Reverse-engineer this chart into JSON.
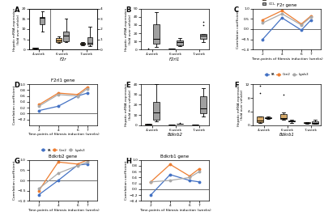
{
  "panel_C": {
    "gene": "F2r gene",
    "xlabel": "Time-points of fibrosis induction (weeks)",
    "ylabel": "Correlation coefficient",
    "x": [
      2,
      4,
      6,
      7
    ],
    "FA": [
      -0.5,
      0.55,
      -0.05,
      0.45
    ],
    "Ccn2": [
      0.45,
      0.9,
      0.25,
      0.65
    ],
    "Lgals3": [
      0.3,
      0.75,
      0.2,
      0.6
    ],
    "ylim": [
      -1,
      1
    ],
    "yticks": [
      -1,
      -0.5,
      0,
      0.5,
      1
    ]
  },
  "panel_D": {
    "gene": "F2rl1 gene",
    "xlabel": "Time-points of fibrosis induction (weeks)",
    "ylabel": "Correlation coefficient",
    "x": [
      2,
      4,
      6,
      7
    ],
    "FA": [
      0.1,
      0.25,
      0.6,
      0.7
    ],
    "Ccn2": [
      0.3,
      0.7,
      0.65,
      0.9
    ],
    "Lgals3": [
      0.25,
      0.65,
      0.6,
      0.85
    ],
    "ylim": [
      -0.4,
      1.0
    ],
    "yticks": [
      -0.2,
      0,
      0.2,
      0.4,
      0.6,
      0.8,
      1.0
    ]
  },
  "panel_G": {
    "gene": "Bdkrb2 gene",
    "xlabel": "Time-points of fibrosis induction (weeks)",
    "ylabel": "Correlation coefficient",
    "x": [
      2,
      4,
      6,
      7
    ],
    "FA": [
      -0.7,
      0.0,
      0.75,
      0.8
    ],
    "Ccn2": [
      -0.5,
      0.9,
      0.8,
      1.0
    ],
    "Lgals3": [
      -0.4,
      0.35,
      0.72,
      0.9
    ],
    "ylim": [
      -1,
      1
    ],
    "yticks": [
      -1,
      -0.5,
      0,
      0.5,
      1
    ]
  },
  "panel_H": {
    "gene": "Bdkrb1 gene",
    "xlabel": "Time-points of fibrosis induction (weeks)",
    "ylabel": "Correlation coefficient",
    "x": [
      2,
      4,
      6,
      7
    ],
    "FA": [
      -0.2,
      0.5,
      0.3,
      0.25
    ],
    "Ccn2": [
      0.25,
      0.85,
      0.45,
      0.7
    ],
    "Lgals3": [
      0.25,
      0.3,
      0.4,
      0.6
    ],
    "ylim": [
      -0.4,
      1.0
    ],
    "yticks": [
      -0.4,
      -0.2,
      0,
      0.2,
      0.4,
      0.6,
      0.8,
      1.0
    ]
  },
  "colors": {
    "FA": "#4472C4",
    "Ccn2": "#ED7D31",
    "Lgals3": "#A9A9A9",
    "vehicle": "#D4A96A",
    "ccl4": "#A0A0A0"
  }
}
